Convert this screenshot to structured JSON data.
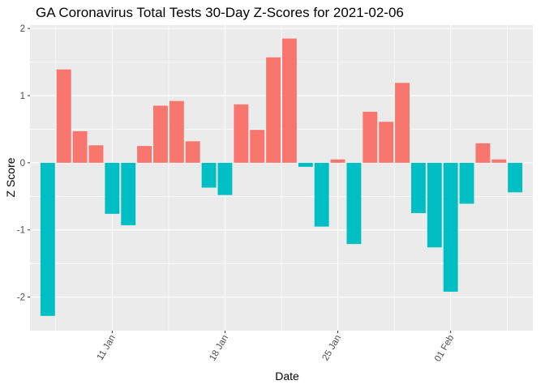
{
  "chart_data": {
    "type": "bar",
    "title": "GA Coronavirus Total Tests 30-Day Z-Scores for 2021-02-06",
    "xlabel": "Date",
    "ylabel": "Z Score",
    "ylim": [
      -2.5,
      2.05
    ],
    "yticks": [
      -2,
      -1,
      0,
      1,
      2
    ],
    "ytick_labels": [
      "-2",
      "-1",
      "0",
      "1",
      "2"
    ],
    "xticks": [
      "2021-01-11",
      "2021-01-18",
      "2021-01-25",
      "2021-02-01"
    ],
    "xtick_labels": [
      "11 Jan",
      "18 Jan",
      "25 Jan",
      "01 Feb"
    ],
    "x_tick_rotation": 60,
    "x_start": "2021-01-07",
    "x_end": "2021-02-05",
    "grid": true,
    "legend": "none",
    "colors": {
      "positive": "#F8766D",
      "negative": "#00BFC4",
      "panel": "#EBEBEB",
      "grid": "#FFFFFF"
    },
    "x": [
      "2021-01-07",
      "2021-01-08",
      "2021-01-09",
      "2021-01-10",
      "2021-01-11",
      "2021-01-12",
      "2021-01-13",
      "2021-01-14",
      "2021-01-15",
      "2021-01-16",
      "2021-01-17",
      "2021-01-18",
      "2021-01-19",
      "2021-01-20",
      "2021-01-21",
      "2021-01-22",
      "2021-01-23",
      "2021-01-24",
      "2021-01-25",
      "2021-01-26",
      "2021-01-27",
      "2021-01-28",
      "2021-01-29",
      "2021-01-30",
      "2021-01-31",
      "2021-02-01",
      "2021-02-02",
      "2021-02-03",
      "2021-02-04",
      "2021-02-05"
    ],
    "values": [
      -2.28,
      1.39,
      0.47,
      0.26,
      -0.76,
      -0.93,
      0.25,
      0.85,
      0.92,
      0.32,
      -0.37,
      -0.48,
      0.87,
      0.49,
      1.57,
      1.85,
      -0.06,
      -0.95,
      0.05,
      -1.21,
      0.76,
      0.61,
      1.19,
      -0.75,
      -1.26,
      -1.92,
      -0.61,
      0.29,
      0.05,
      -0.44
    ]
  }
}
